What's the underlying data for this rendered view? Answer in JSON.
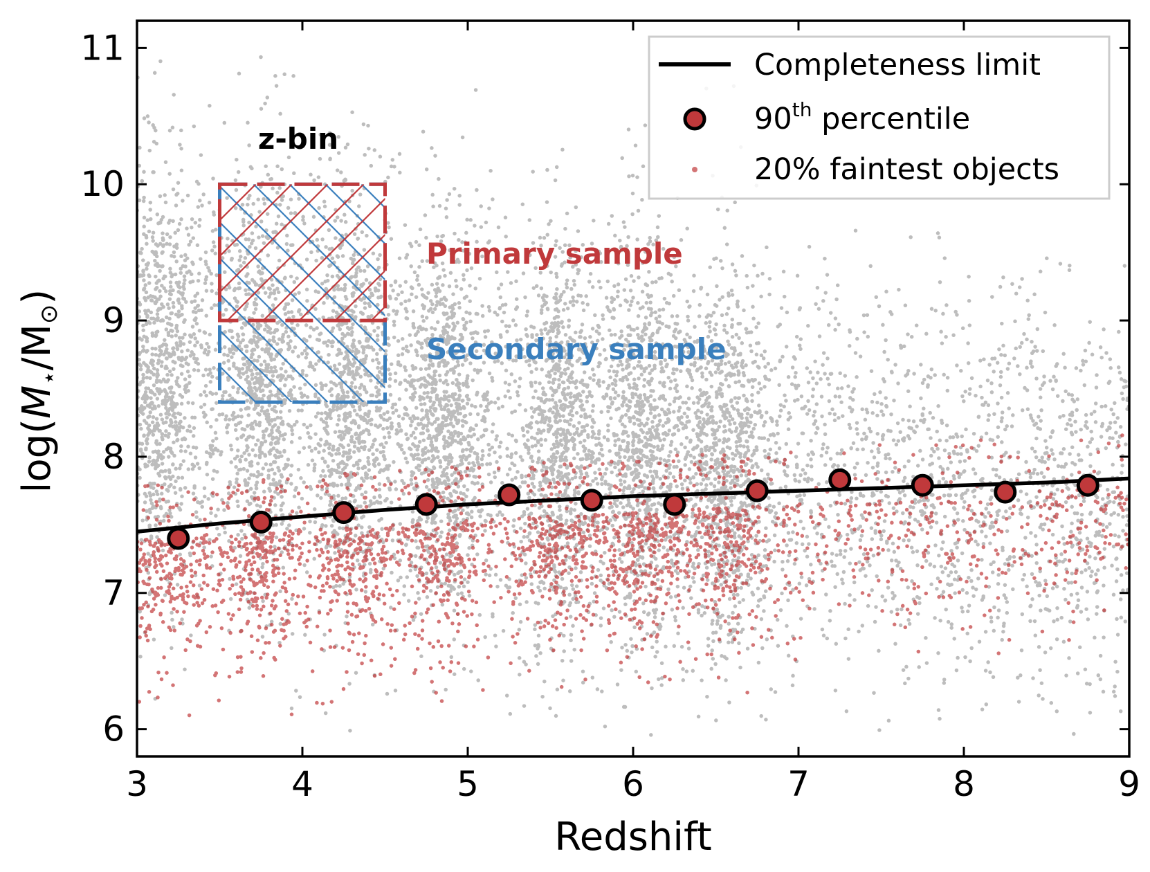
{
  "chart_data": {
    "type": "scatter",
    "xlabel": "Redshift",
    "ylabel": {
      "prefix": "log(",
      "mass_symbol": "M",
      "mass_subscript": "⋆",
      "slash": "/M",
      "sun_subscript": "⊙",
      "suffix": ")"
    },
    "xlim": [
      3,
      9
    ],
    "ylim": [
      5.8,
      11.2
    ],
    "xticks": [
      3,
      4,
      5,
      6,
      7,
      8,
      9
    ],
    "yticks": [
      6,
      7,
      8,
      9,
      10,
      11
    ],
    "grid": false,
    "legend_position": "top-right",
    "legend": [
      {
        "label": "Completeness limit",
        "marker": "line",
        "color": "#000000"
      },
      {
        "label_base": "90",
        "label_sup": "th",
        "label_rest": " percentile",
        "marker": "circle",
        "color": "#c0393b"
      },
      {
        "label": "20% faintest objects",
        "marker": "dot",
        "color": "#c0393b"
      }
    ],
    "series": [
      {
        "name": "Completeness limit",
        "kind": "line",
        "color": "#000000",
        "x": [
          3.0,
          3.5,
          4.0,
          4.5,
          5.0,
          5.5,
          6.0,
          6.5,
          7.0,
          7.5,
          8.0,
          8.5,
          9.0
        ],
        "y": [
          7.45,
          7.51,
          7.56,
          7.61,
          7.65,
          7.68,
          7.71,
          7.73,
          7.75,
          7.77,
          7.79,
          7.81,
          7.84
        ]
      },
      {
        "name": "90th percentile",
        "kind": "points",
        "color": "#c0393b",
        "x": [
          3.25,
          3.75,
          4.25,
          4.75,
          5.25,
          5.75,
          6.25,
          6.75,
          7.25,
          7.75,
          8.25,
          8.75
        ],
        "y": [
          7.4,
          7.52,
          7.59,
          7.65,
          7.72,
          7.68,
          7.65,
          7.75,
          7.83,
          7.79,
          7.74,
          7.79
        ]
      }
    ],
    "background_distribution": {
      "all_objects_color": "#bdbdbd",
      "faintest_color": "#c0393b",
      "dense_clumps_x": [
        3.15,
        3.75,
        4.3,
        4.85,
        5.55,
        6.05,
        6.55
      ],
      "all_objects_y_range": [
        6.0,
        10.7
      ],
      "faintest_y_range": [
        6.2,
        8.0
      ]
    },
    "annotations": [
      {
        "text": "z-bin",
        "color": "#000000"
      },
      {
        "text": "Primary sample",
        "color": "#c0393b"
      },
      {
        "text": "Secondary sample",
        "color": "#3a7fbd"
      }
    ],
    "zbin_box": {
      "x_range": [
        3.5,
        4.5
      ],
      "primary_y_range": [
        9.0,
        10.0
      ],
      "secondary_y_range": [
        8.4,
        10.0
      ],
      "primary_color": "#c0393b",
      "secondary_color": "#3a7fbd"
    }
  }
}
